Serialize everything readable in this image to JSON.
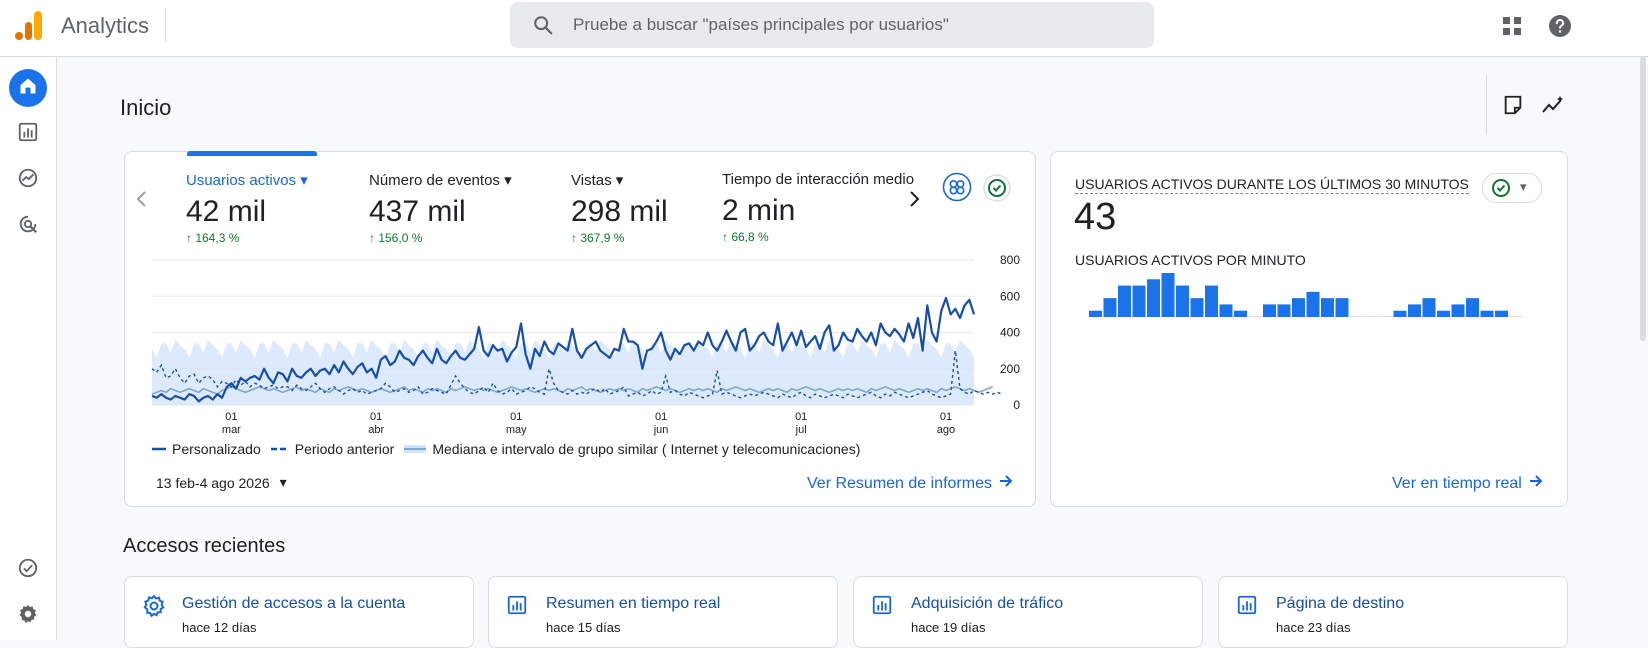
{
  "app": {
    "title": "Analytics",
    "search_placeholder": "Pruebe a buscar \"países principales por usuarios\""
  },
  "icons": {
    "logo": "analytics-logo-icon",
    "search": "search-icon",
    "apps": "apps-grid-icon",
    "help": "help-icon",
    "annotation": "note-icon",
    "insights": "insights-icon"
  },
  "colors": {
    "accent": "#1a73e8",
    "link": "#1967d2",
    "positive": "#137333",
    "logo_orange": "#f9ab00",
    "logo_dark_orange": "#e37400"
  },
  "sidenav": {
    "items": [
      {
        "name": "home",
        "icon": "home-icon",
        "active": true
      },
      {
        "name": "reports",
        "icon": "bar-chart-icon"
      },
      {
        "name": "explore",
        "icon": "explore-icon"
      },
      {
        "name": "advertising",
        "icon": "advertising-icon"
      },
      {
        "name": "admin-check",
        "icon": "check-circle-icon"
      },
      {
        "name": "settings",
        "icon": "gear-icon"
      }
    ]
  },
  "page": {
    "title": "Inicio"
  },
  "overview": {
    "metrics": [
      {
        "label": "Usuarios activos",
        "value": "42 mil",
        "change": "↑ 164,3 %",
        "active": true
      },
      {
        "label": "Número de eventos",
        "value": "437 mil",
        "change": "↑ 156,0 %"
      },
      {
        "label": "Vistas",
        "value": "298 mil",
        "change": "↑ 367,9 %"
      },
      {
        "label": "Tiempo de interacción medio",
        "value": "2 min",
        "change": "↑ 66,8 %"
      }
    ],
    "legend": [
      "Personalizado",
      "Periodo anterior",
      "Mediana e intervalo de grupo similar ( Internet y telecomunicaciones)"
    ],
    "date_range": "13 feb-4 ago 2026",
    "link": "Ver Resumen de informes"
  },
  "chart_data": {
    "type": "line",
    "ylim": [
      0,
      800
    ],
    "y_ticks": [
      "0",
      "200",
      "400",
      "600",
      "800"
    ],
    "x_ticks": [
      {
        "day": "01",
        "month": "mar",
        "index": 17
      },
      {
        "day": "01",
        "month": "abr",
        "index": 48
      },
      {
        "day": "01",
        "month": "may",
        "index": 78
      },
      {
        "day": "01",
        "month": "jun",
        "index": 109
      },
      {
        "day": "01",
        "month": "jul",
        "index": 139
      },
      {
        "day": "01",
        "month": "ago",
        "index": 170
      }
    ],
    "series": [
      {
        "name": "Personalizado",
        "color": "#174ea6",
        "style": "solid",
        "values": [
          50,
          40,
          60,
          40,
          30,
          50,
          40,
          30,
          60,
          50,
          20,
          40,
          50,
          30,
          60,
          40,
          100,
          120,
          90,
          150,
          130,
          150,
          160,
          140,
          200,
          150,
          120,
          180,
          170,
          130,
          200,
          160,
          150,
          180,
          200,
          160,
          190,
          200,
          170,
          220,
          180,
          240,
          200,
          170,
          210,
          230,
          180,
          200,
          150,
          250,
          270,
          220,
          240,
          300,
          260,
          250,
          220,
          270,
          300,
          260,
          230,
          310,
          250,
          230,
          270,
          300,
          260,
          250,
          280,
          310,
          430,
          300,
          270,
          330,
          300,
          310,
          240,
          290,
          320,
          450,
          280,
          200,
          310,
          270,
          350,
          300,
          280,
          340,
          320,
          300,
          420,
          300,
          260,
          310,
          330,
          350,
          300,
          280,
          260,
          310,
          300,
          420,
          350,
          350,
          330,
          200,
          300,
          310,
          350,
          400,
          300,
          250,
          310,
          280,
          330,
          340,
          300,
          350,
          330,
          400,
          330,
          300,
          350,
          410,
          350,
          300,
          400,
          420,
          300,
          330,
          380,
          400,
          350,
          330,
          450,
          300,
          350,
          400,
          330,
          410,
          320,
          350,
          380,
          310,
          400,
          440,
          300,
          330,
          400,
          360,
          350,
          420,
          380,
          350,
          400,
          330,
          450,
          400,
          380,
          420,
          390,
          350,
          450,
          370,
          480,
          300,
          550,
          400,
          350,
          520,
          590,
          500,
          530,
          480,
          550,
          580,
          500
        ],
        "range_note": "approx"
      },
      {
        "name": "Periodo anterior",
        "color": "#174ea6",
        "style": "dashed",
        "values": [
          200,
          180,
          220,
          150,
          160,
          200,
          150,
          120,
          160,
          170,
          120,
          150,
          160,
          140,
          100,
          130,
          120,
          100,
          140,
          110,
          130,
          100,
          120,
          110,
          90,
          100,
          110,
          90,
          100,
          100,
          80,
          110,
          90,
          80,
          100,
          120,
          90,
          70,
          90,
          100,
          80,
          60,
          80,
          90,
          70,
          80,
          60,
          70,
          80,
          90,
          120,
          100,
          70,
          80,
          90,
          70,
          80,
          100,
          60,
          70,
          90,
          80,
          70,
          60,
          110,
          160,
          120,
          90,
          70,
          60,
          80,
          100,
          70,
          120,
          80,
          60,
          70,
          90,
          60,
          70,
          80,
          100,
          90,
          70,
          60,
          200,
          120,
          80,
          70,
          60,
          80,
          60,
          70,
          60,
          80,
          90,
          70,
          90,
          60,
          70,
          80,
          100,
          50,
          60,
          70,
          50,
          60,
          80,
          60,
          70,
          160,
          70,
          80,
          60,
          50,
          70,
          60,
          50,
          40,
          50,
          60,
          190,
          60,
          70,
          60,
          50,
          40,
          50,
          60,
          50,
          60,
          70,
          60,
          50,
          40,
          60,
          50,
          40,
          60,
          70,
          50,
          40,
          60,
          50,
          40,
          50,
          60,
          50,
          40,
          60,
          50,
          40,
          50,
          60,
          70,
          50,
          40,
          60,
          50,
          70,
          60,
          50,
          40,
          50,
          60,
          70,
          80,
          60,
          50,
          40,
          50,
          60,
          300,
          90,
          70,
          60,
          80,
          70,
          60,
          70,
          60,
          70,
          60
        ]
      },
      {
        "name": "Mediana e intervalo de grupo similar ( Internet y telecomunicaciones)",
        "color": "#7aa7d1",
        "style": "band",
        "median": [
          60,
          70,
          80,
          70,
          90,
          80,
          70,
          80,
          90,
          80,
          70,
          90,
          80,
          70,
          60,
          80,
          90,
          100,
          90,
          80,
          70,
          80,
          90,
          100,
          90,
          80,
          90,
          80,
          70,
          80,
          90,
          100,
          80,
          90,
          80,
          70,
          90,
          80,
          70,
          90,
          80,
          90,
          100,
          90,
          80,
          90,
          80,
          70,
          80,
          90,
          80,
          70,
          80,
          90,
          100,
          80,
          90,
          80,
          70,
          90,
          80,
          90,
          80,
          70,
          90,
          80,
          90,
          100,
          90,
          80,
          90,
          80,
          90,
          80,
          70,
          80,
          90,
          100,
          90,
          80,
          90,
          80,
          70,
          80,
          90,
          80,
          90,
          80,
          70,
          90,
          80,
          90,
          100,
          80,
          90,
          80,
          70,
          80,
          90,
          80,
          90,
          80,
          90,
          80,
          70,
          90,
          80,
          90,
          100,
          90,
          80,
          90,
          80,
          70,
          80,
          90,
          80,
          90,
          80,
          90,
          80,
          70,
          90,
          80,
          90,
          100,
          90,
          80,
          90,
          80,
          70,
          80,
          90,
          80,
          90,
          80,
          70,
          90,
          80,
          90,
          100,
          90,
          80,
          90,
          80,
          70,
          80,
          90,
          80,
          90,
          80,
          90,
          80,
          70,
          90,
          80,
          90,
          100,
          90,
          80,
          90,
          80,
          70,
          80,
          90,
          80,
          90,
          80,
          70,
          90,
          80,
          90,
          100,
          90,
          80,
          90,
          80,
          70,
          80,
          90,
          100
        ],
        "lower": 0,
        "upper_pattern": [
          310,
          260,
          340,
          340,
          290,
          360,
          330
        ]
      }
    ]
  },
  "realtime": {
    "title": "USUARIOS ACTIVOS DURANTE LOS ÚLTIMOS 30 MINUTOS",
    "value": "43",
    "subtitle": "USUARIOS ACTIVOS POR MINUTO",
    "link": "Ver en tiempo real",
    "bars": [
      1,
      3,
      5,
      5,
      6,
      7,
      5,
      3,
      5,
      2,
      1,
      0,
      2,
      2,
      3,
      4,
      3,
      3,
      0,
      0,
      0,
      1,
      2,
      3,
      1,
      2,
      3,
      1,
      1,
      0
    ]
  },
  "recent": {
    "title": "Accesos recientes",
    "items": [
      {
        "name": "Gestión de accesos a la cuenta",
        "time": "hace 12 días",
        "icon": "gear-icon"
      },
      {
        "name": "Resumen en tiempo real",
        "time": "hace 15 días",
        "icon": "report-icon"
      },
      {
        "name": "Adquisición de tráfico",
        "time": "hace 19 días",
        "icon": "report-icon"
      },
      {
        "name": "Página de destino",
        "time": "hace 23 días",
        "icon": "report-icon"
      }
    ]
  }
}
